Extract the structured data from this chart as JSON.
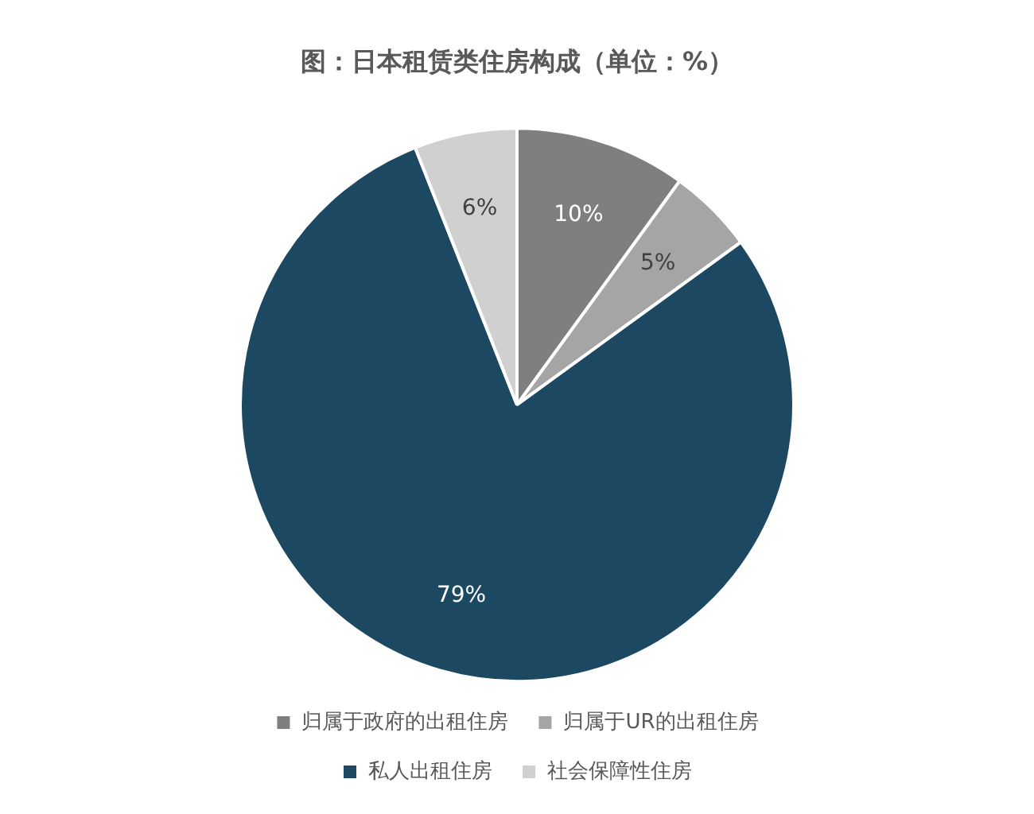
{
  "chart_data": {
    "type": "pie",
    "title": "图：日本租赁类住房构成（单位：%）",
    "categories": [
      "归属于政府的出租住房",
      "归属于UR的出租住房",
      "私人出租住房",
      "社会保障性住房"
    ],
    "values": [
      10,
      5,
      79,
      6
    ],
    "value_labels": [
      "10%",
      "5%",
      "79%",
      "6%"
    ],
    "colors": [
      "#7f7f7f",
      "#a5a5a5",
      "#1c4862",
      "#d0d0d0"
    ],
    "legend": "bottom"
  }
}
